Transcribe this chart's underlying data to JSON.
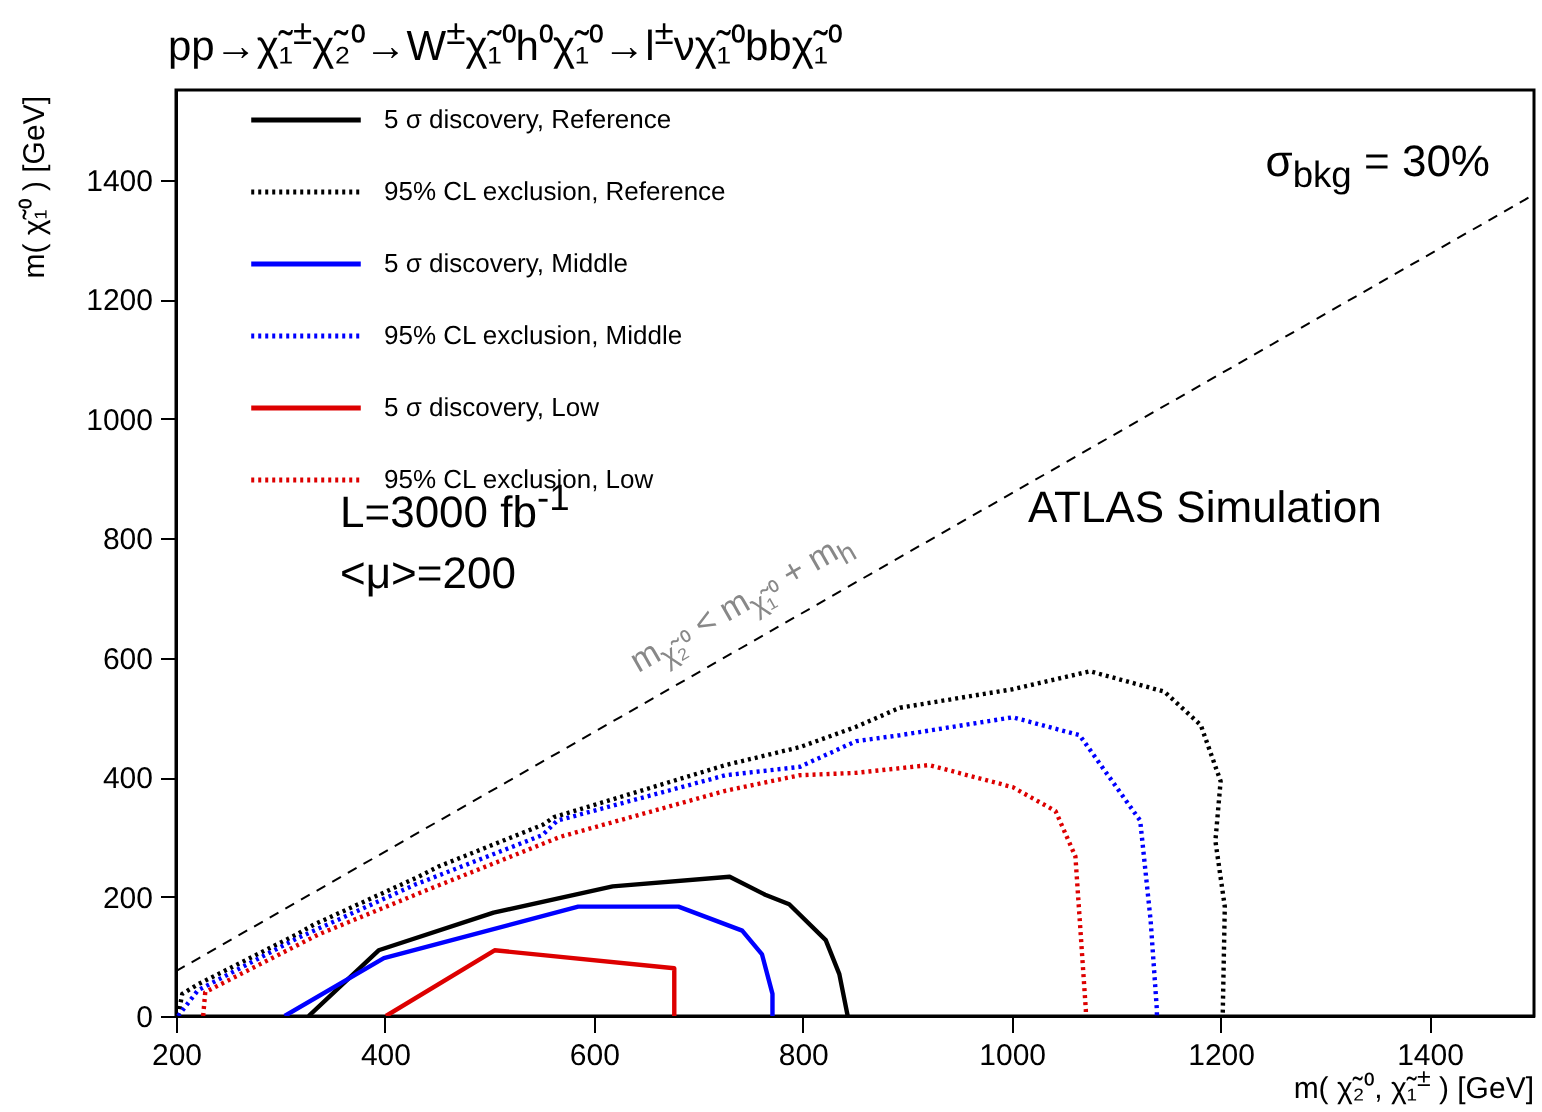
{
  "chart_data": {
    "type": "line",
    "title": "pp→χ̃₁$^{±}$χ̃₂⁰→W$^{±}$χ̃₁⁰h⁰χ̃₁⁰→l$^{±}$νχ̃₁⁰bbχ̃₁⁰",
    "xlabel": "m( χ̃₂⁰,  χ̃₁$^{±}$ ) [GeV]",
    "ylabel": "m( χ̃₁⁰ ) [GeV]",
    "xlim": [
      200,
      1500
    ],
    "ylim": [
      0,
      1550
    ],
    "xticks": [
      200,
      400,
      600,
      800,
      1000,
      1200,
      1400
    ],
    "yticks": [
      0,
      200,
      400,
      600,
      800,
      1000,
      1200,
      1400
    ],
    "legend": "top left",
    "grid": false,
    "series": [
      {
        "name": "5 σ discovery, Reference",
        "color": "#000000",
        "line_style": "solid",
        "x": [
          327,
          394,
          504,
          618,
          730,
          764,
          787,
          822,
          835,
          843
        ],
        "values": [
          0,
          110,
          173,
          217,
          233,
          203,
          187,
          127,
          70,
          0
        ]
      },
      {
        "name": "95% CL exclusion, Reference",
        "color": "#000000",
        "line_style": "dotted",
        "x": [
          202,
          206,
          221,
          316,
          332,
          432,
          451,
          551,
          562,
          726,
          797,
          851,
          893,
          1001,
          1075,
          1146,
          1181,
          1200,
          1195,
          1204,
          1202
        ],
        "values": [
          0,
          37,
          53,
          137,
          153,
          233,
          250,
          320,
          333,
          420,
          450,
          484,
          516,
          547,
          577,
          543,
          487,
          393,
          293,
          183,
          0
        ]
      },
      {
        "name": "5 σ discovery, Middle",
        "color": "#0000ff",
        "line_style": "solid",
        "x": [
          304,
          399,
          585,
          681,
          742,
          761,
          771,
          771
        ],
        "values": [
          0,
          97,
          183,
          183,
          143,
          103,
          37,
          0
        ]
      },
      {
        "name": "95% CL exclusion, Middle",
        "color": "#0000ff",
        "line_style": "dotted",
        "x": [
          202,
          221,
          316,
          429,
          551,
          565,
          726,
          797,
          851,
          893,
          1001,
          1065,
          1123,
          1133,
          1139,
          1139
        ],
        "values": [
          0,
          43,
          130,
          220,
          303,
          327,
          403,
          417,
          460,
          470,
          500,
          470,
          327,
          160,
          10,
          0
        ]
      },
      {
        "name": "5 σ discovery, Low",
        "color": "#dd0000",
        "line_style": "solid",
        "x": [
          401,
          505,
          677,
          677
        ],
        "values": [
          0,
          110,
          80,
          0
        ]
      },
      {
        "name": "95% CL exclusion, Low",
        "color": "#dd0000",
        "line_style": "dotted",
        "x": [
          226,
          228,
          337,
          439,
          568,
          726,
          797,
          851,
          921,
          1001,
          1042,
          1061,
          1071,
          1071
        ],
        "values": [
          0,
          40,
          137,
          210,
          300,
          377,
          403,
          407,
          420,
          383,
          343,
          267,
          10,
          0
        ]
      },
      {
        "color": "#000000",
        "line_style": "dashed",
        "x": [
          200,
          1500
        ],
        "values": [
          75,
          1375
        ]
      }
    ],
    "annotations": [
      "σ$_{bkg}$ = 30%",
      "L=3000 fb$^{-1}$",
      "<μ>=200",
      "ATLAS Simulation",
      {
        "text": "m$_{χ̃₂⁰}$ < m$_{χ̃₁⁰}$ + m$_{h}$",
        "x": 760,
        "y": 635
      }
    ]
  }
}
